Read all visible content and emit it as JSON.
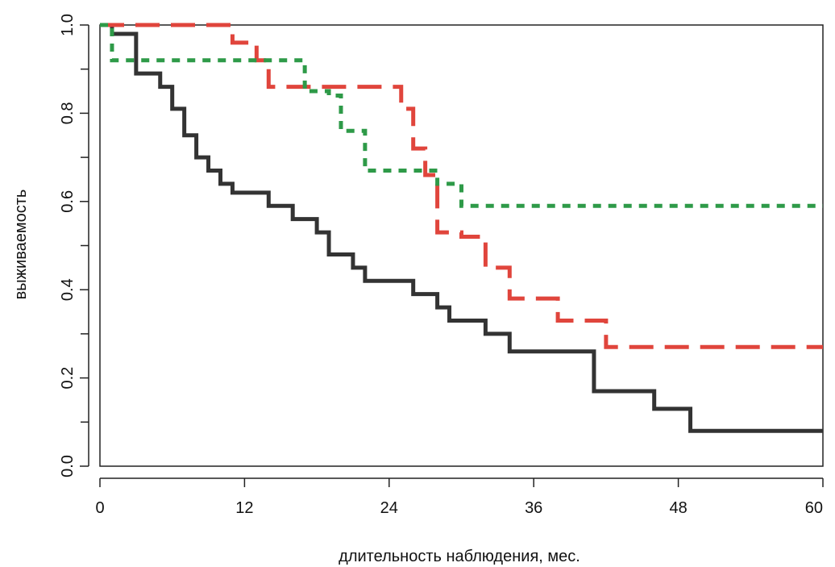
{
  "chart_data": {
    "type": "line",
    "step": true,
    "title": "",
    "xlabel": "длительность наблюдения, мес.",
    "ylabel": "выживаемость",
    "xlim": [
      0,
      60
    ],
    "ylim": [
      0,
      1
    ],
    "xticks": [
      0,
      12,
      24,
      36,
      48,
      60
    ],
    "yticks": [
      0.0,
      0.2,
      0.4,
      0.6,
      0.8,
      1.0
    ],
    "ytick_labels": [
      "0.0",
      "0.2",
      "0.4",
      "0.6",
      "0.8",
      "1.0"
    ],
    "grid": false,
    "series": [
      {
        "color": "#333333",
        "line_style": "solid",
        "x": [
          0,
          1,
          3,
          5,
          6,
          7,
          8,
          9,
          10,
          11,
          14,
          16,
          18,
          19,
          21,
          22,
          24,
          26,
          28,
          29,
          32,
          34,
          41,
          46,
          49,
          60
        ],
        "y": [
          1.0,
          0.98,
          0.89,
          0.86,
          0.81,
          0.75,
          0.7,
          0.67,
          0.64,
          0.62,
          0.59,
          0.56,
          0.53,
          0.48,
          0.45,
          0.42,
          0.42,
          0.39,
          0.36,
          0.33,
          0.3,
          0.26,
          0.17,
          0.13,
          0.08,
          0.08
        ]
      },
      {
        "color": "#e0453c",
        "line_style": "dashed",
        "x": [
          0,
          11,
          13,
          14,
          24,
          25,
          26,
          27,
          28,
          30,
          32,
          34,
          38,
          42,
          60
        ],
        "y": [
          1.0,
          0.96,
          0.92,
          0.86,
          0.86,
          0.81,
          0.72,
          0.66,
          0.53,
          0.52,
          0.45,
          0.38,
          0.33,
          0.27,
          0.27
        ]
      },
      {
        "color": "#2e9a48",
        "line_style": "dotted",
        "x": [
          0,
          1,
          17,
          19,
          20,
          22,
          24,
          28,
          30,
          60
        ],
        "y": [
          1.0,
          0.92,
          0.85,
          0.84,
          0.76,
          0.67,
          0.67,
          0.64,
          0.59,
          0.59
        ]
      }
    ]
  }
}
